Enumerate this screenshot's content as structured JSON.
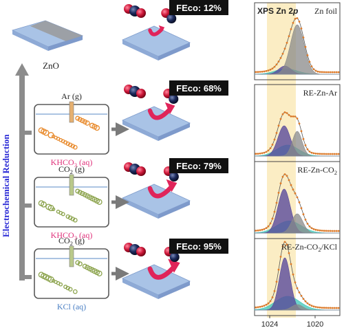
{
  "substrate_label": "ZnO",
  "side_label": "Electrochemical Reduction",
  "process_rows": [
    {
      "gas_main": "Ar",
      "gas_sub": "",
      "gas_tail": " (g)",
      "electrolyte_main": "KHCO",
      "electrolyte_sub": "3",
      "electrolyte_tail": " (aq)",
      "bubble_color": "#e8892a"
    },
    {
      "gas_main": "CO",
      "gas_sub": "2",
      "gas_tail": " (g)",
      "electrolyte_main": "KHCO",
      "electrolyte_sub": "3",
      "electrolyte_tail": " (aq)",
      "bubble_color": "#8aa24a"
    },
    {
      "gas_main": "CO",
      "gas_sub": "2",
      "gas_tail": " (g)",
      "electrolyte_main": "KCl",
      "electrolyte_sub": "",
      "electrolyte_tail": " (aq)",
      "bubble_color": "#8aa24a"
    }
  ],
  "fe_labels": [
    "FEco: 12%",
    "FEco: 68%",
    "FEco: 79%",
    "FEco: 95%"
  ],
  "fe_values": [
    12,
    68,
    79,
    95
  ],
  "xps": {
    "title_main": "XPS Zn 2",
    "title_italic": "p",
    "tick_left": "1024",
    "tick_right": "1020",
    "panels": [
      {
        "label_main": "Zn foil",
        "label_sub": "",
        "label_tail": ""
      },
      {
        "label_main": "RE-Zn-Ar",
        "label_sub": "",
        "label_tail": ""
      },
      {
        "label_main": "RE-Zn-CO",
        "label_sub": "2",
        "label_tail": ""
      },
      {
        "label_main": "RE-Zn-CO",
        "label_sub": "2",
        "label_tail": "/KCl"
      }
    ]
  },
  "colors": {
    "electrolyte_text": "#e0307a",
    "kcl_text": "#4a7fc4",
    "side_label": "#2a2ad6",
    "highlight_band": "#fbedc4",
    "fit_envelope": "#e07b28",
    "peak_purple": "#5a4a9c",
    "peak_teal": "#3cc6b8",
    "peak_grey": "#8a8a8a",
    "arrow_red": "#e0245a",
    "badge_bg": "#111111"
  }
}
